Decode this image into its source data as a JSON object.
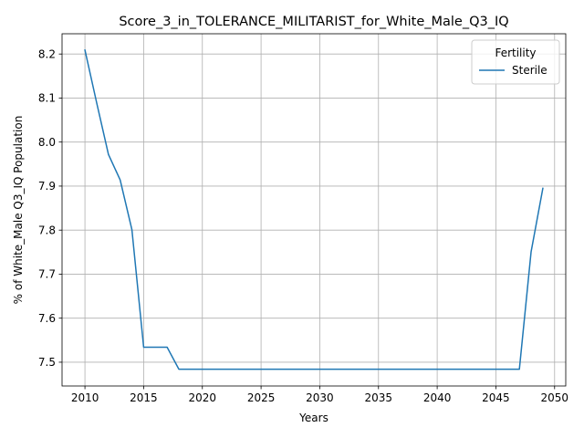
{
  "chart_data": {
    "type": "line",
    "title": "Score_3_in_TOLERANCE_MILITARIST_for_White_Male_Q3_IQ",
    "xlabel": "Years",
    "ylabel": "% of White_Male Q3_IQ Population",
    "xlim": [
      2008.05,
      2050.95
    ],
    "ylim": [
      7.446,
      8.246
    ],
    "xticks": [
      2010,
      2015,
      2020,
      2025,
      2030,
      2035,
      2040,
      2045,
      2050
    ],
    "yticks": [
      7.5,
      7.6,
      7.7,
      7.8,
      7.9,
      8.0,
      8.1,
      8.2
    ],
    "ytick_labels": [
      "7.5",
      "7.6",
      "7.7",
      "7.8",
      "7.9",
      "8.0",
      "8.1",
      "8.2"
    ],
    "grid": true,
    "legend": {
      "title": "Fertility",
      "placement": "top-right"
    },
    "x": [
      2010,
      2011,
      2012,
      2013,
      2014,
      2015,
      2016,
      2017,
      2018,
      2019,
      2020,
      2021,
      2022,
      2023,
      2024,
      2025,
      2026,
      2027,
      2028,
      2029,
      2030,
      2031,
      2032,
      2033,
      2034,
      2035,
      2036,
      2037,
      2038,
      2039,
      2040,
      2041,
      2042,
      2043,
      2044,
      2045,
      2046,
      2047,
      2048,
      2049
    ],
    "series": [
      {
        "name": "Sterile",
        "color": "#1f77b4",
        "values": [
          8.209,
          8.089,
          7.972,
          7.914,
          7.801,
          7.534,
          7.534,
          7.534,
          7.484,
          7.484,
          7.484,
          7.484,
          7.484,
          7.484,
          7.484,
          7.484,
          7.484,
          7.484,
          7.484,
          7.484,
          7.484,
          7.484,
          7.484,
          7.484,
          7.484,
          7.484,
          7.484,
          7.484,
          7.484,
          7.484,
          7.484,
          7.484,
          7.484,
          7.484,
          7.484,
          7.484,
          7.484,
          7.484,
          7.751,
          7.895
        ]
      }
    ]
  }
}
